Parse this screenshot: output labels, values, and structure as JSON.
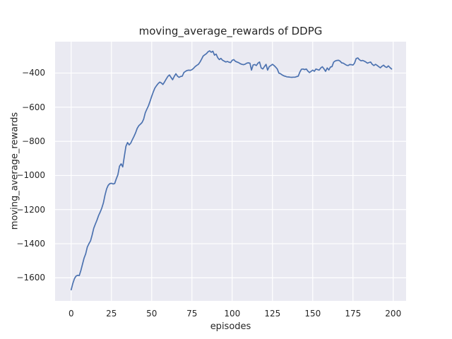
{
  "style": {
    "figure_bg": "#ffffff",
    "axes_bg": "#eaeaf2",
    "grid_color": "#ffffff",
    "text_color": "#262626",
    "line_color": "#4c72b0"
  },
  "chart_data": {
    "type": "line",
    "title": "moving_average_rewards of DDPG",
    "xlabel": "episodes",
    "ylabel": "moving_average_rewards",
    "grid": true,
    "legend_position": "none",
    "xlim": [
      -10,
      208
    ],
    "ylim": [
      -1735,
      -216
    ],
    "x_ticks": [
      0,
      25,
      50,
      75,
      100,
      125,
      150,
      175,
      200
    ],
    "x_tick_labels": [
      "0",
      "25",
      "50",
      "75",
      "100",
      "125",
      "150",
      "175",
      "200"
    ],
    "y_ticks": [
      -400,
      -600,
      -800,
      -1000,
      -1200,
      -1400,
      -1600
    ],
    "y_tick_labels": [
      "−400",
      "−600",
      "−800",
      "−1000",
      "−1200",
      "−1400",
      "−1600"
    ],
    "series": [
      {
        "color": "#4c72b0",
        "x_start": 0,
        "x_step": 1,
        "values": [
          -1670,
          -1633,
          -1605,
          -1590,
          -1585,
          -1587,
          -1557,
          -1520,
          -1485,
          -1460,
          -1420,
          -1400,
          -1383,
          -1350,
          -1310,
          -1285,
          -1262,
          -1235,
          -1215,
          -1192,
          -1161,
          -1115,
          -1078,
          -1058,
          -1048,
          -1046,
          -1050,
          -1047,
          -1020,
          -996,
          -946,
          -932,
          -950,
          -890,
          -829,
          -807,
          -821,
          -810,
          -790,
          -771,
          -750,
          -724,
          -708,
          -700,
          -690,
          -670,
          -633,
          -612,
          -592,
          -565,
          -536,
          -510,
          -488,
          -474,
          -462,
          -453,
          -458,
          -467,
          -452,
          -435,
          -420,
          -411,
          -425,
          -439,
          -420,
          -404,
          -418,
          -425,
          -420,
          -418,
          -397,
          -390,
          -385,
          -383,
          -384,
          -380,
          -372,
          -362,
          -355,
          -349,
          -335,
          -318,
          -300,
          -293,
          -286,
          -275,
          -270,
          -278,
          -272,
          -295,
          -289,
          -310,
          -321,
          -314,
          -325,
          -330,
          -335,
          -332,
          -336,
          -339,
          -325,
          -321,
          -331,
          -335,
          -339,
          -345,
          -349,
          -351,
          -348,
          -342,
          -340,
          -342,
          -383,
          -352,
          -350,
          -356,
          -342,
          -335,
          -370,
          -376,
          -362,
          -349,
          -383,
          -362,
          -356,
          -349,
          -356,
          -365,
          -376,
          -400,
          -404,
          -411,
          -416,
          -419,
          -422,
          -423,
          -424,
          -425,
          -424,
          -424,
          -421,
          -418,
          -395,
          -378,
          -376,
          -380,
          -376,
          -388,
          -397,
          -390,
          -383,
          -390,
          -376,
          -380,
          -383,
          -370,
          -363,
          -375,
          -390,
          -370,
          -382,
          -365,
          -362,
          -336,
          -329,
          -326,
          -325,
          -330,
          -340,
          -342,
          -348,
          -354,
          -356,
          -350,
          -351,
          -353,
          -342,
          -315,
          -311,
          -322,
          -328,
          -326,
          -330,
          -335,
          -342,
          -338,
          -335,
          -349,
          -356,
          -349,
          -355,
          -362,
          -369,
          -360,
          -354,
          -363,
          -367,
          -358,
          -368,
          -376
        ]
      }
    ]
  }
}
